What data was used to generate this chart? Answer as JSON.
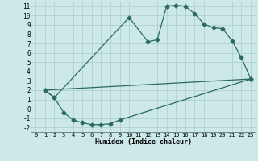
{
  "xlabel": "Humidex (Indice chaleur)",
  "bg_color": "#cce8e8",
  "grid_color": "#aacccc",
  "line_color": "#2a6b5a",
  "xlim": [
    -0.5,
    23.5
  ],
  "ylim": [
    -2.5,
    11.5
  ],
  "xticks": [
    0,
    1,
    2,
    3,
    4,
    5,
    6,
    7,
    8,
    9,
    10,
    11,
    12,
    13,
    14,
    15,
    16,
    17,
    18,
    19,
    20,
    21,
    22,
    23
  ],
  "yticks": [
    -2,
    -1,
    0,
    1,
    2,
    3,
    4,
    5,
    6,
    7,
    8,
    9,
    10,
    11
  ],
  "curve1_x": [
    1,
    2,
    10,
    12,
    13,
    14,
    15,
    16,
    17,
    18,
    19,
    20,
    21,
    22,
    23
  ],
  "curve1_y": [
    2.0,
    1.2,
    9.8,
    7.2,
    7.4,
    11.0,
    11.1,
    11.0,
    10.2,
    9.1,
    8.7,
    8.6,
    7.3,
    5.5,
    3.2
  ],
  "curve2_x": [
    1,
    23
  ],
  "curve2_y": [
    2.0,
    3.2
  ],
  "curve3_x": [
    1,
    2,
    3,
    4,
    5,
    6,
    7,
    8,
    9,
    23
  ],
  "curve3_y": [
    2.0,
    1.2,
    -0.4,
    -1.2,
    -1.5,
    -1.7,
    -1.7,
    -1.6,
    -1.2,
    3.2
  ],
  "markersize": 2.5,
  "linewidth": 0.9,
  "tick_fontsize": 5.0,
  "xlabel_fontsize": 6.0
}
